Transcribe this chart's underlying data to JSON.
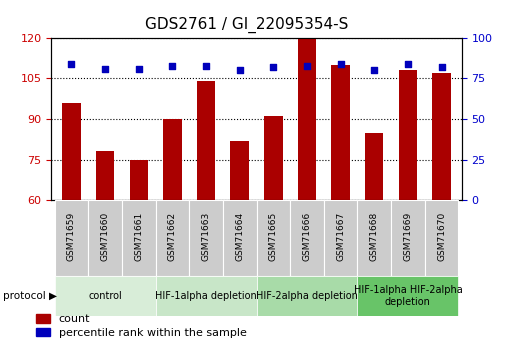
{
  "title": "GDS2761 / GI_22095354-S",
  "samples": [
    "GSM71659",
    "GSM71660",
    "GSM71661",
    "GSM71662",
    "GSM71663",
    "GSM71664",
    "GSM71665",
    "GSM71666",
    "GSM71667",
    "GSM71668",
    "GSM71669",
    "GSM71670"
  ],
  "counts": [
    96,
    78,
    75,
    90,
    104,
    82,
    91,
    120,
    110,
    85,
    108,
    107
  ],
  "percentile_ranks": [
    84,
    81,
    81,
    83,
    83,
    80,
    82,
    83,
    84,
    80,
    84,
    82
  ],
  "ylim_left": [
    60,
    120
  ],
  "ylim_right": [
    0,
    100
  ],
  "yticks_left": [
    60,
    75,
    90,
    105,
    120
  ],
  "yticks_right": [
    0,
    25,
    50,
    75,
    100
  ],
  "bar_color": "#aa0000",
  "dot_color": "#0000bb",
  "protocol_groups": [
    {
      "label": "control",
      "start": 0,
      "end": 3,
      "color": "#d8edd8"
    },
    {
      "label": "HIF-1alpha depletion",
      "start": 3,
      "end": 6,
      "color": "#c8e6c8"
    },
    {
      "label": "HIF-2alpha depletion",
      "start": 6,
      "end": 9,
      "color": "#a8dba8"
    },
    {
      "label": "HIF-1alpha HIF-2alpha\ndepletion",
      "start": 9,
      "end": 12,
      "color": "#68c468"
    }
  ],
  "legend_count_label": "count",
  "legend_pct_label": "percentile rank within the sample",
  "bg_color": "#ffffff",
  "tick_label_color_left": "#cc0000",
  "tick_label_color_right": "#0000cc",
  "xtick_bg_color": "#cccccc",
  "title_fontsize": 11,
  "tick_fontsize": 8,
  "protocol_fontsize": 7,
  "legend_fontsize": 8
}
